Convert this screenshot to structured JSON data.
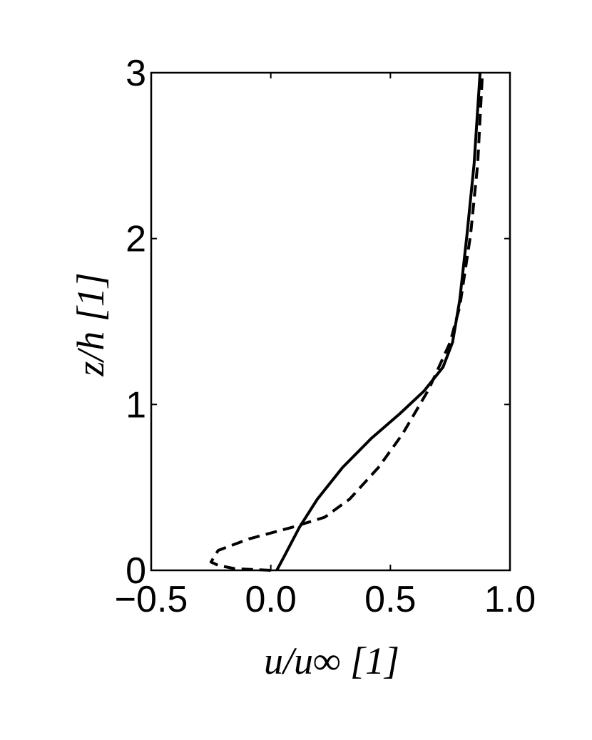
{
  "chart_data": {
    "type": "line",
    "xlabel": "u/u∞ [1]",
    "ylabel": "z/h [1]",
    "xlim": [
      -0.5,
      1.0
    ],
    "ylim": [
      0,
      3
    ],
    "xticks": [
      {
        "value": -0.5,
        "label": "−0.5"
      },
      {
        "value": 0,
        "label": "0.0"
      },
      0.5,
      {
        "value": 1,
        "label": "1.0"
      }
    ],
    "yticks": [
      0,
      1,
      2,
      3
    ],
    "grid": false,
    "series": [
      {
        "color": "#000000",
        "dash": "solid",
        "x": [
          0.025,
          0.06,
          0.12,
          0.195,
          0.3,
          0.42,
          0.54,
          0.64,
          0.72,
          0.76,
          0.79,
          0.82,
          0.85,
          0.875
        ],
        "values": [
          0,
          0.095,
          0.26,
          0.43,
          0.62,
          0.795,
          0.945,
          1.08,
          1.225,
          1.375,
          1.63,
          2.02,
          2.45,
          3.0
        ]
      },
      {
        "color": "#000000",
        "dash": "dashed",
        "x": [
          0.0,
          -0.15,
          -0.22,
          -0.25,
          -0.22,
          -0.09,
          0.09,
          0.225,
          0.33,
          0.45,
          0.55,
          0.66,
          0.75,
          0.79,
          0.835,
          0.865,
          0.885
        ],
        "values": [
          0,
          0.01,
          0.03,
          0.05,
          0.12,
          0.19,
          0.26,
          0.32,
          0.43,
          0.62,
          0.82,
          1.09,
          1.375,
          1.59,
          2.02,
          2.45,
          3.0
        ]
      }
    ]
  }
}
